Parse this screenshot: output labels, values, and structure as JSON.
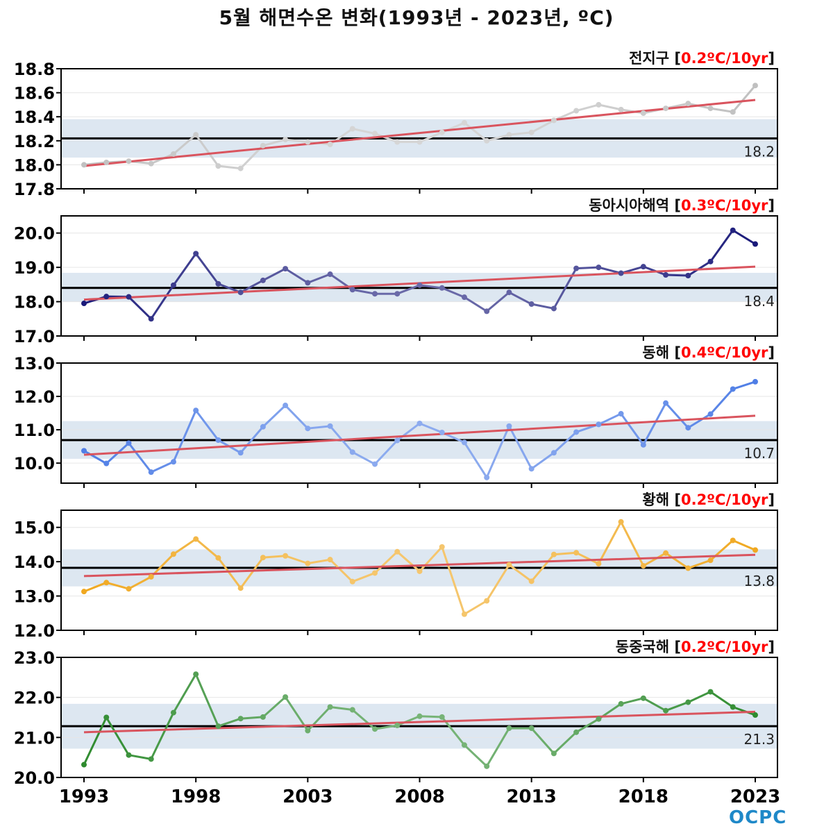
{
  "title": "5월 해면수온 변화(1993년 - 2023년, ºC)",
  "logo_text": "OCPC",
  "colors": {
    "trend": "#d9545e",
    "mean": "#000000",
    "band": "#dde7f1",
    "trend_text": "#ff0000"
  },
  "chart_data": [
    {
      "type": "line",
      "region": "전지구",
      "trend_text": "[0.2ºC/10yr]",
      "color": "#c0c0c0",
      "x": [
        1993,
        1994,
        1995,
        1996,
        1997,
        1998,
        1999,
        2000,
        2001,
        2002,
        2003,
        2004,
        2005,
        2006,
        2007,
        2008,
        2009,
        2010,
        2011,
        2012,
        2013,
        2014,
        2015,
        2016,
        2017,
        2018,
        2019,
        2020,
        2021,
        2022,
        2023
      ],
      "values": [
        18.0,
        18.02,
        18.03,
        18.01,
        18.09,
        18.25,
        17.99,
        17.97,
        18.16,
        18.21,
        18.19,
        18.17,
        18.3,
        18.26,
        18.19,
        18.19,
        18.27,
        18.35,
        18.2,
        18.25,
        18.27,
        18.37,
        18.45,
        18.5,
        18.46,
        18.43,
        18.47,
        18.51,
        18.47,
        18.44,
        18.66
      ],
      "mean": 18.22,
      "mean_label": "18.2",
      "band": [
        18.06,
        18.38
      ],
      "trend": [
        17.99,
        18.54
      ],
      "ylim": [
        17.8,
        18.8
      ],
      "yticks": [
        "17.8",
        "18.0",
        "18.2",
        "18.4",
        "18.6",
        "18.8"
      ]
    },
    {
      "type": "line",
      "region": "동아시아해역",
      "trend_text": "[0.3ºC/10yr]",
      "color": "#1a1a7a",
      "x": [
        1993,
        1994,
        1995,
        1996,
        1997,
        1998,
        1999,
        2000,
        2001,
        2002,
        2003,
        2004,
        2005,
        2006,
        2007,
        2008,
        2009,
        2010,
        2011,
        2012,
        2013,
        2014,
        2015,
        2016,
        2017,
        2018,
        2019,
        2020,
        2021,
        2022,
        2023
      ],
      "values": [
        17.95,
        18.15,
        18.14,
        17.5,
        18.48,
        19.4,
        18.52,
        18.27,
        18.62,
        18.96,
        18.55,
        18.8,
        18.35,
        18.23,
        18.23,
        18.48,
        18.4,
        18.13,
        17.72,
        18.27,
        17.93,
        17.8,
        18.97,
        19.0,
        18.83,
        19.02,
        18.78,
        18.76,
        19.17,
        20.08,
        19.68
      ],
      "mean": 18.4,
      "mean_label": "18.4",
      "band": [
        18.0,
        18.84
      ],
      "trend": [
        18.06,
        19.02
      ],
      "ylim": [
        17.0,
        20.5
      ],
      "yticks": [
        "17.0",
        "18.0",
        "19.0",
        "20.0"
      ]
    },
    {
      "type": "line",
      "region": "동해",
      "trend_text": "[0.4ºC/10yr]",
      "color": "#4f7ee6",
      "x": [
        1993,
        1994,
        1995,
        1996,
        1997,
        1998,
        1999,
        2000,
        2001,
        2002,
        2003,
        2004,
        2005,
        2006,
        2007,
        2008,
        2009,
        2010,
        2011,
        2012,
        2013,
        2014,
        2015,
        2016,
        2017,
        2018,
        2019,
        2020,
        2021,
        2022,
        2023
      ],
      "values": [
        10.37,
        9.99,
        10.6,
        9.73,
        10.04,
        11.58,
        10.69,
        10.31,
        11.09,
        11.73,
        11.04,
        11.11,
        10.33,
        9.97,
        10.68,
        11.19,
        10.92,
        10.62,
        9.57,
        11.11,
        9.83,
        10.31,
        10.93,
        11.16,
        11.48,
        10.55,
        11.8,
        11.06,
        11.47,
        12.22,
        12.44
      ],
      "mean": 10.69,
      "mean_label": "10.7",
      "band": [
        10.13,
        11.26
      ],
      "trend": [
        10.25,
        11.42
      ],
      "ylim": [
        9.4,
        13.0
      ],
      "yticks": [
        "10.0",
        "11.0",
        "12.0",
        "13.0"
      ]
    },
    {
      "type": "line",
      "region": "황해",
      "trend_text": "[0.2ºC/10yr]",
      "color": "#f0a820",
      "x": [
        1993,
        1994,
        1995,
        1996,
        1997,
        1998,
        1999,
        2000,
        2001,
        2002,
        2003,
        2004,
        2005,
        2006,
        2007,
        2008,
        2009,
        2010,
        2011,
        2012,
        2013,
        2014,
        2015,
        2016,
        2017,
        2018,
        2019,
        2020,
        2021,
        2022,
        2023
      ],
      "values": [
        13.13,
        13.39,
        13.21,
        13.56,
        14.22,
        14.66,
        14.11,
        13.23,
        14.12,
        14.17,
        13.95,
        14.06,
        13.42,
        13.67,
        14.29,
        13.72,
        14.43,
        12.47,
        12.86,
        13.91,
        13.43,
        14.21,
        14.26,
        13.94,
        15.16,
        13.88,
        14.25,
        13.81,
        14.04,
        14.62,
        14.34
      ],
      "mean": 13.82,
      "mean_label": "13.8",
      "band": [
        13.28,
        14.36
      ],
      "trend": [
        13.58,
        14.2
      ],
      "ylim": [
        12.0,
        15.5
      ],
      "yticks": [
        "12.0",
        "13.0",
        "14.0",
        "15.0"
      ]
    },
    {
      "type": "line",
      "region": "동중국해",
      "trend_text": "[0.2ºC/10yr]",
      "color": "#2e8b2e",
      "x": [
        1993,
        1994,
        1995,
        1996,
        1997,
        1998,
        1999,
        2000,
        2001,
        2002,
        2003,
        2004,
        2005,
        2006,
        2007,
        2008,
        2009,
        2010,
        2011,
        2012,
        2013,
        2014,
        2015,
        2016,
        2017,
        2018,
        2019,
        2020,
        2021,
        2022,
        2023
      ],
      "values": [
        20.32,
        21.5,
        20.56,
        20.46,
        21.62,
        22.58,
        21.28,
        21.47,
        21.51,
        22.01,
        21.17,
        21.76,
        21.69,
        21.21,
        21.3,
        21.53,
        21.51,
        20.81,
        20.28,
        21.23,
        21.23,
        20.6,
        21.13,
        21.46,
        21.84,
        21.98,
        21.67,
        21.88,
        22.14,
        21.76,
        21.56
      ],
      "mean": 21.28,
      "mean_label": "21.3",
      "band": [
        20.72,
        21.84
      ],
      "trend": [
        21.13,
        21.64
      ],
      "ylim": [
        20.0,
        23.0
      ],
      "yticks": [
        "20.0",
        "21.0",
        "22.0",
        "23.0"
      ]
    }
  ],
  "x_ticks": [
    "1993",
    "1998",
    "2003",
    "2008",
    "2013",
    "2018",
    "2023"
  ]
}
